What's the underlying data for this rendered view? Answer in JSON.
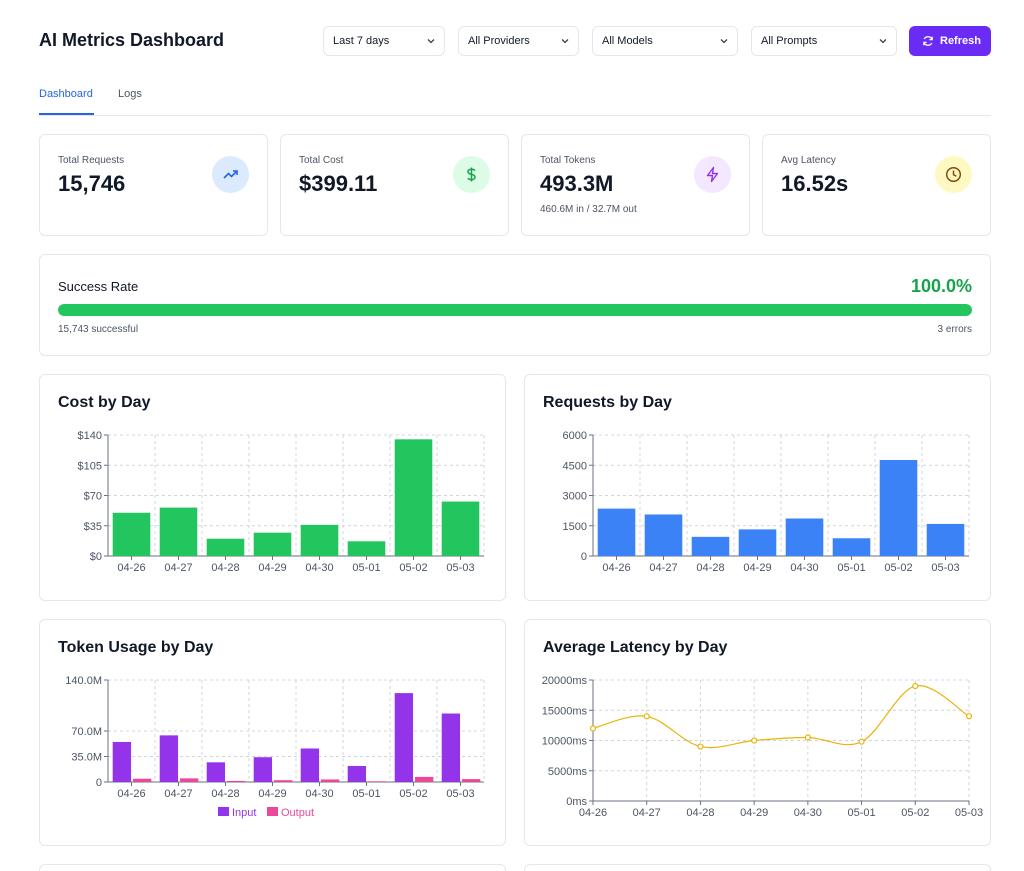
{
  "header": {
    "title": "AI Metrics Dashboard",
    "filters": {
      "date_range": "Last 7 days",
      "providers": "All Providers",
      "models": "All Models",
      "prompts": "All Prompts"
    },
    "refresh_label": "Refresh"
  },
  "tabs": [
    {
      "label": "Dashboard",
      "active": true
    },
    {
      "label": "Logs",
      "active": false
    }
  ],
  "stats": {
    "requests": {
      "label": "Total Requests",
      "value": "15,746",
      "icon": "trending-up-icon",
      "color": "#2563eb"
    },
    "cost": {
      "label": "Total Cost",
      "value": "$399.11",
      "icon": "dollar-icon",
      "color": "#16a34a"
    },
    "tokens": {
      "label": "Total Tokens",
      "value": "493.3M",
      "sub": "460.6M in / 32.7M out",
      "icon": "lightning-icon",
      "color": "#9333ea"
    },
    "latency": {
      "label": "Avg Latency",
      "value": "16.52s",
      "icon": "clock-icon",
      "color": "#ca8a04"
    }
  },
  "success_rate": {
    "label": "Success Rate",
    "value": "100.0%",
    "fraction": 0.9998,
    "successful": "15,743 successful",
    "errors": "3 errors"
  },
  "chart_data": [
    {
      "type": "bar",
      "title": "Cost by Day",
      "categories": [
        "04-26",
        "04-27",
        "04-28",
        "04-29",
        "04-30",
        "05-01",
        "05-02",
        "05-03"
      ],
      "values": [
        50,
        56,
        20,
        27,
        36,
        17,
        135,
        63
      ],
      "yticks": [
        "$0",
        "$35",
        "$70",
        "$105",
        "$140"
      ],
      "ylim": [
        0,
        140
      ],
      "grid": true,
      "color": "#22c55e"
    },
    {
      "type": "bar",
      "title": "Requests by Day",
      "categories": [
        "04-26",
        "04-27",
        "04-28",
        "04-29",
        "04-30",
        "05-01",
        "05-02",
        "05-03"
      ],
      "values": [
        2350,
        2060,
        950,
        1320,
        1860,
        880,
        4760,
        1590
      ],
      "yticks": [
        "0",
        "1500",
        "3000",
        "4500",
        "6000"
      ],
      "ylim": [
        0,
        6000
      ],
      "grid": true,
      "color": "#3b82f6"
    },
    {
      "type": "bar",
      "title": "Token Usage by Day",
      "categories": [
        "04-26",
        "04-27",
        "04-28",
        "04-29",
        "04-30",
        "05-01",
        "05-02",
        "05-03"
      ],
      "series": [
        {
          "name": "Input",
          "values": [
            55,
            64,
            27,
            34,
            46,
            22,
            122,
            94
          ],
          "color": "#9333ea"
        },
        {
          "name": "Output",
          "values": [
            4.5,
            5,
            1.5,
            2.5,
            3.5,
            1,
            7,
            4
          ],
          "color": "#ec4899"
        }
      ],
      "yticks": [
        "0",
        "35.0M",
        "70.0M",
        "140.0M"
      ],
      "ytick_values": [
        0,
        35,
        70,
        140
      ],
      "ylim": [
        0,
        140
      ],
      "grid": true
    },
    {
      "type": "line",
      "title": "Average Latency by Day",
      "categories": [
        "04-26",
        "04-27",
        "04-28",
        "04-29",
        "04-30",
        "05-01",
        "05-02",
        "05-03"
      ],
      "values": [
        12000,
        14000,
        9000,
        10000,
        10500,
        9800,
        19000,
        14000
      ],
      "yticks": [
        "0ms",
        "5000ms",
        "10000ms",
        "15000ms",
        "20000ms"
      ],
      "ylim": [
        0,
        20000
      ],
      "grid": true,
      "color": "#eab308"
    }
  ]
}
